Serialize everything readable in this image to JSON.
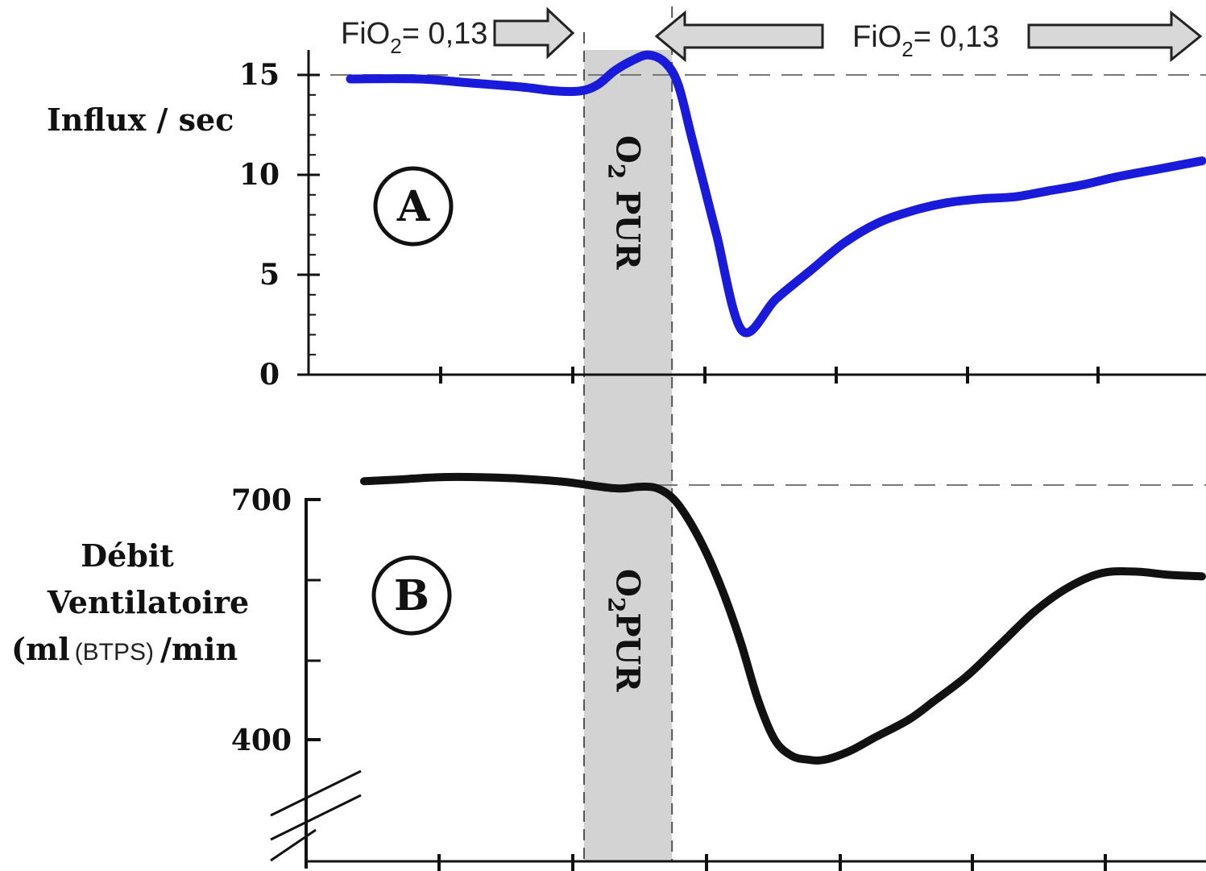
{
  "chart_data": [
    {
      "type": "line",
      "panel_label": "A",
      "ylabel": "Influx / sec",
      "ylim": [
        0,
        15.5
      ],
      "yticks": [
        0,
        5,
        10,
        15
      ],
      "ytick_labels": [
        "0",
        "5",
        "10",
        "15"
      ],
      "reference_line": 15,
      "x_domain": [
        0,
        100
      ],
      "band": {
        "x_start": 30.7,
        "x_end": 40.5,
        "label": "O",
        "label_sub": "2",
        "label_rest": " PUR"
      },
      "series": [
        {
          "color": "#1a1adb",
          "x": [
            0,
            8,
            14,
            20,
            24,
            27,
            29,
            31,
            33,
            35,
            37,
            38.5,
            40,
            41.5,
            43,
            46,
            50,
            54,
            58,
            62,
            66,
            70,
            74,
            78,
            82,
            86,
            90,
            95,
            100
          ],
          "y": [
            14.8,
            14.8,
            14.6,
            14.4,
            14.2,
            14.2,
            14.5,
            15.2,
            15.7,
            16.0,
            15.6,
            14.5,
            12.0,
            9.5,
            7.0,
            2.2,
            3.8,
            5.2,
            6.6,
            7.6,
            8.2,
            8.6,
            8.8,
            8.9,
            9.2,
            9.5,
            9.9,
            10.3,
            10.7
          ]
        }
      ]
    },
    {
      "type": "line",
      "panel_label": "B",
      "ylabel_lines": [
        "Débit",
        "Ventilatoire"
      ],
      "ylabel_units": {
        "left": "(ml",
        "mid": "(BTPS)",
        "right": "/min"
      },
      "ylim": [
        240,
        720
      ],
      "yticks": [
        400,
        700
      ],
      "ytick_labels": [
        "400",
        "700"
      ],
      "minor_yticks": [
        550,
        475
      ],
      "reference_line": 725,
      "axis_break": true,
      "x_domain": [
        0,
        100
      ],
      "band": {
        "x_start": 30.7,
        "x_end": 40.5,
        "label": "O",
        "label_sub": "2",
        "label_rest": "PUR"
      },
      "series": [
        {
          "color": "#111111",
          "x": [
            0,
            4,
            9,
            14,
            19,
            24,
            29,
            31,
            33,
            35,
            37,
            39,
            41,
            43,
            45,
            47,
            49,
            51,
            53,
            55,
            58,
            61,
            65,
            68,
            72,
            76,
            80,
            84,
            88,
            92,
            96,
            100
          ],
          "y": [
            723,
            725,
            728,
            728,
            726,
            722,
            715,
            714,
            716,
            714,
            700,
            670,
            630,
            580,
            520,
            450,
            400,
            380,
            375,
            375,
            386,
            403,
            425,
            448,
            480,
            520,
            560,
            590,
            608,
            610,
            606,
            604
          ]
        }
      ]
    }
  ],
  "annotations": {
    "fio2_left": {
      "prefix": "FiO",
      "sub": "2",
      "suffix": "= 0,13"
    },
    "fio2_right": {
      "prefix": "FiO",
      "sub": "2",
      "suffix": "= 0,13"
    }
  }
}
